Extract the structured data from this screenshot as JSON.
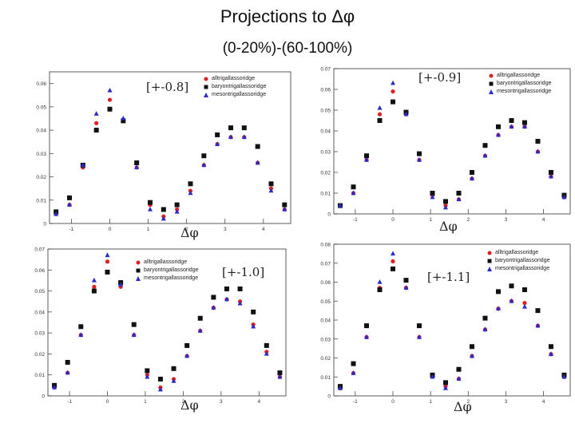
{
  "title": "Projections to Δφ",
  "subtitle": "(0-20%)-(60-100%)",
  "colors": {
    "alltrig": "#e02020",
    "baryon": "#111111",
    "meson": "#2a2ac8"
  },
  "chart_data": [
    {
      "type": "scatter",
      "range_label": "[+-0.8]",
      "xlabel": "Δφ",
      "xlim": [
        -1.57,
        4.71
      ],
      "ylim": [
        0,
        0.065
      ],
      "xticks": [
        "-1",
        "0",
        "1",
        "2",
        "3",
        "4"
      ],
      "yticks": [
        "0",
        "0.01",
        "0.02",
        "0.03",
        "0.04",
        "0.05",
        "0.06"
      ],
      "legend": [
        "alltrigallassoridge",
        "baryontrigallassoridge",
        "mesontrigallassoridge"
      ],
      "x": [
        -1.4,
        -1.05,
        -0.7,
        -0.35,
        0,
        0.35,
        0.7,
        1.05,
        1.4,
        1.75,
        2.1,
        2.45,
        2.8,
        3.15,
        3.5,
        3.85,
        4.2,
        4.55
      ],
      "series": [
        {
          "name": "alltrigallassoridge",
          "marker": "circle",
          "values": [
            0.004,
            0.008,
            0.024,
            0.043,
            0.053,
            0.044,
            0.024,
            0.008,
            0.003,
            0.006,
            0.014,
            0.025,
            0.034,
            0.037,
            0.037,
            0.026,
            0.015,
            0.006
          ]
        },
        {
          "name": "baryontrigallassoridge",
          "marker": "square",
          "values": [
            0.005,
            0.011,
            0.025,
            0.04,
            0.049,
            0.044,
            0.026,
            0.009,
            0.006,
            0.008,
            0.017,
            0.029,
            0.038,
            0.041,
            0.041,
            0.033,
            0.017,
            0.008
          ]
        },
        {
          "name": "mesontrigallassoridge",
          "marker": "triangle",
          "values": [
            0.004,
            0.008,
            0.025,
            0.047,
            0.057,
            0.045,
            0.024,
            0.006,
            0.002,
            0.005,
            0.013,
            0.025,
            0.034,
            0.037,
            0.037,
            0.026,
            0.014,
            0.006
          ]
        }
      ]
    },
    {
      "type": "scatter",
      "range_label": "[+-0.9]",
      "xlabel": "Δφ",
      "xlim": [
        -1.57,
        4.71
      ],
      "ylim": [
        0,
        0.07
      ],
      "xticks": [
        "-1",
        "0",
        "1",
        "2",
        "3",
        "4"
      ],
      "yticks": [
        "0",
        "0.01",
        "0.02",
        "0.03",
        "0.04",
        "0.05",
        "0.06",
        "0.07"
      ],
      "legend": [
        "alltrigallassoridge",
        "baryontrigallassoridge",
        "mesontrigallassoridge"
      ],
      "x": [
        -1.4,
        -1.05,
        -0.7,
        -0.35,
        0,
        0.35,
        0.7,
        1.05,
        1.4,
        1.75,
        2.1,
        2.45,
        2.8,
        3.15,
        3.5,
        3.85,
        4.2,
        4.55
      ],
      "series": [
        {
          "name": "alltrigallassoridge",
          "marker": "circle",
          "values": [
            0.004,
            0.01,
            0.026,
            0.048,
            0.059,
            0.048,
            0.026,
            0.009,
            0.004,
            0.007,
            0.017,
            0.028,
            0.038,
            0.042,
            0.042,
            0.03,
            0.018,
            0.008
          ]
        },
        {
          "name": "baryontrigallassoridge",
          "marker": "square",
          "values": [
            0.004,
            0.013,
            0.028,
            0.045,
            0.054,
            0.049,
            0.029,
            0.01,
            0.006,
            0.01,
            0.02,
            0.033,
            0.042,
            0.045,
            0.044,
            0.035,
            0.02,
            0.009
          ]
        },
        {
          "name": "mesontrigallassoridge",
          "marker": "triangle",
          "values": [
            0.004,
            0.01,
            0.026,
            0.051,
            0.063,
            0.048,
            0.026,
            0.008,
            0.003,
            0.007,
            0.017,
            0.028,
            0.038,
            0.042,
            0.042,
            0.03,
            0.018,
            0.008
          ]
        }
      ]
    },
    {
      "type": "scatter",
      "range_label": "[+-1.0]",
      "xlabel": "Δφ",
      "xlim": [
        -1.57,
        4.71
      ],
      "ylim": [
        0,
        0.07
      ],
      "xticks": [
        "-1",
        "0",
        "1",
        "2",
        "3",
        "4"
      ],
      "yticks": [
        "0",
        "0.01",
        "0.02",
        "0.03",
        "0.04",
        "0.05",
        "0.06",
        "0.07"
      ],
      "legend": [
        "alltrigallassoridge",
        "baryontrigallassoridge",
        "mesontrigallassoridge"
      ],
      "x": [
        -1.4,
        -1.05,
        -0.7,
        -0.35,
        0,
        0.35,
        0.7,
        1.05,
        1.4,
        1.75,
        2.1,
        2.45,
        2.8,
        3.15,
        3.5,
        3.85,
        4.2,
        4.55
      ],
      "series": [
        {
          "name": "alltrigallassoridge",
          "marker": "circle",
          "values": [
            0.004,
            0.011,
            0.029,
            0.052,
            0.064,
            0.052,
            0.029,
            0.01,
            0.004,
            0.008,
            0.019,
            0.031,
            0.042,
            0.046,
            0.045,
            0.034,
            0.021,
            0.009
          ]
        },
        {
          "name": "baryontrigallassoridge",
          "marker": "square",
          "values": [
            0.005,
            0.016,
            0.033,
            0.05,
            0.059,
            0.054,
            0.034,
            0.012,
            0.008,
            0.013,
            0.024,
            0.037,
            0.047,
            0.051,
            0.051,
            0.04,
            0.024,
            0.011
          ]
        },
        {
          "name": "mesontrigallassoridge",
          "marker": "triangle",
          "values": [
            0.004,
            0.011,
            0.029,
            0.055,
            0.067,
            0.053,
            0.029,
            0.009,
            0.003,
            0.007,
            0.019,
            0.031,
            0.042,
            0.046,
            0.044,
            0.033,
            0.02,
            0.009
          ]
        }
      ]
    },
    {
      "type": "scatter",
      "range_label": "[+-1.1]",
      "xlabel": "Δφ",
      "xlim": [
        -1.57,
        4.71
      ],
      "ylim": [
        0,
        0.08
      ],
      "xticks": [
        "-1",
        "0",
        "1",
        "2",
        "3",
        "4"
      ],
      "yticks": [
        "0",
        "0.01",
        "0.02",
        "0.03",
        "0.04",
        "0.05",
        "0.06",
        "0.07",
        "0.08"
      ],
      "legend": [
        "alltrigallassoridge",
        "baryontrigallassoridge",
        "mesontrigallassoridge"
      ],
      "x": [
        -1.4,
        -1.05,
        -0.7,
        -0.35,
        0,
        0.35,
        0.7,
        1.05,
        1.4,
        1.75,
        2.1,
        2.45,
        2.8,
        3.15,
        3.5,
        3.85,
        4.2,
        4.55
      ],
      "series": [
        {
          "name": "alltrigallassoridge",
          "marker": "circle",
          "values": [
            0.004,
            0.012,
            0.031,
            0.057,
            0.071,
            0.057,
            0.031,
            0.011,
            0.005,
            0.009,
            0.021,
            0.035,
            0.046,
            0.05,
            0.049,
            0.037,
            0.022,
            0.01
          ]
        },
        {
          "name": "baryontrigallassoridge",
          "marker": "square",
          "values": [
            0.005,
            0.017,
            0.037,
            0.056,
            0.067,
            0.061,
            0.037,
            0.011,
            0.007,
            0.014,
            0.026,
            0.041,
            0.055,
            0.058,
            0.056,
            0.045,
            0.026,
            0.011
          ]
        },
        {
          "name": "mesontrigallassoridge",
          "marker": "triangle",
          "values": [
            0.004,
            0.012,
            0.031,
            0.06,
            0.075,
            0.057,
            0.031,
            0.01,
            0.004,
            0.009,
            0.021,
            0.035,
            0.046,
            0.05,
            0.047,
            0.037,
            0.022,
            0.01
          ]
        }
      ]
    }
  ]
}
